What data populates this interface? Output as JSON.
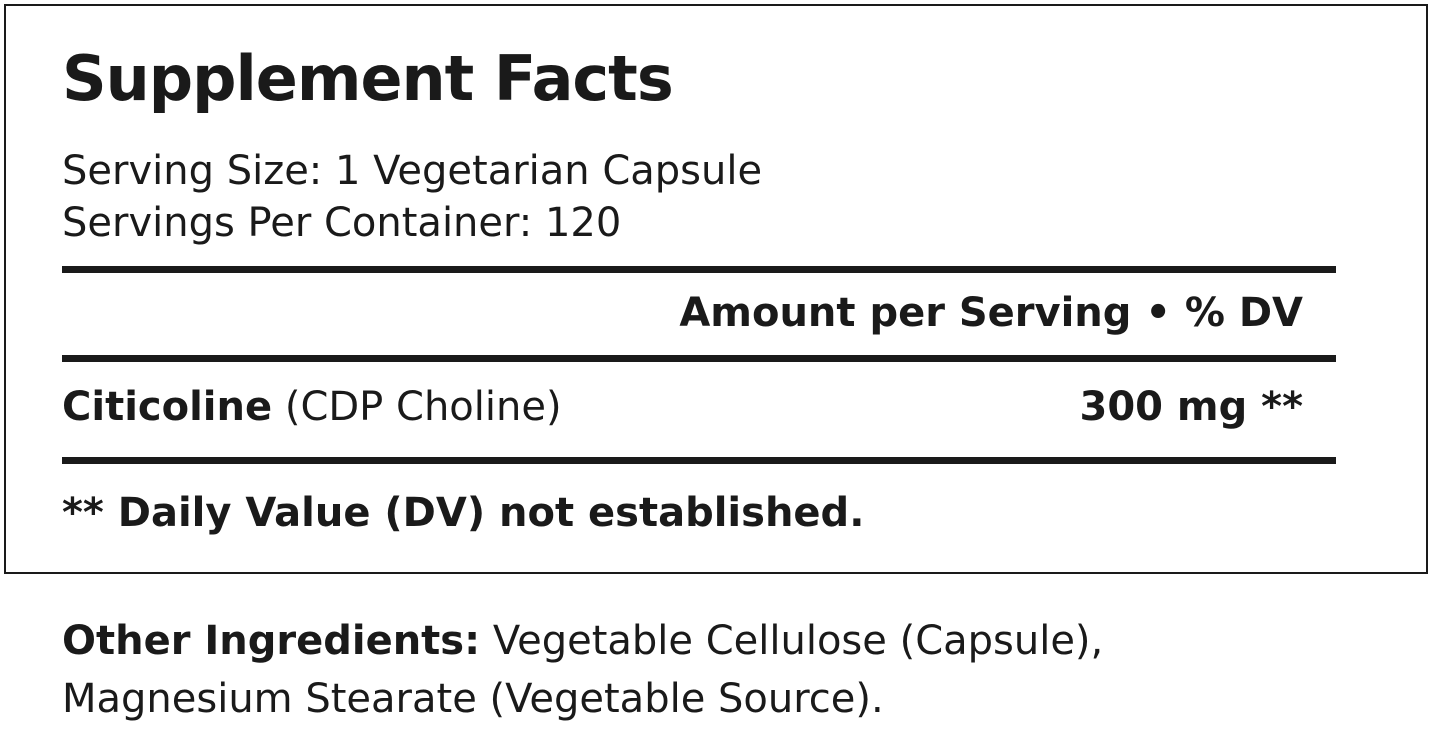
{
  "title": "Supplement Facts",
  "serving_size": "Serving Size: 1 Vegetarian Capsule",
  "servings_per_container": "Servings Per Container: 120",
  "header": "Amount per Serving • % DV",
  "ingredient": {
    "name": "Citicoline",
    "detail": " (CDP Choline)",
    "amount": "300 mg **"
  },
  "footnote": "** Daily Value (DV) not established.",
  "other": {
    "label": "Other Ingredients:",
    "line1": " Vegetable Cellulose (Capsule),",
    "line2": "Magnesium Stearate (Vegetable Source)."
  }
}
